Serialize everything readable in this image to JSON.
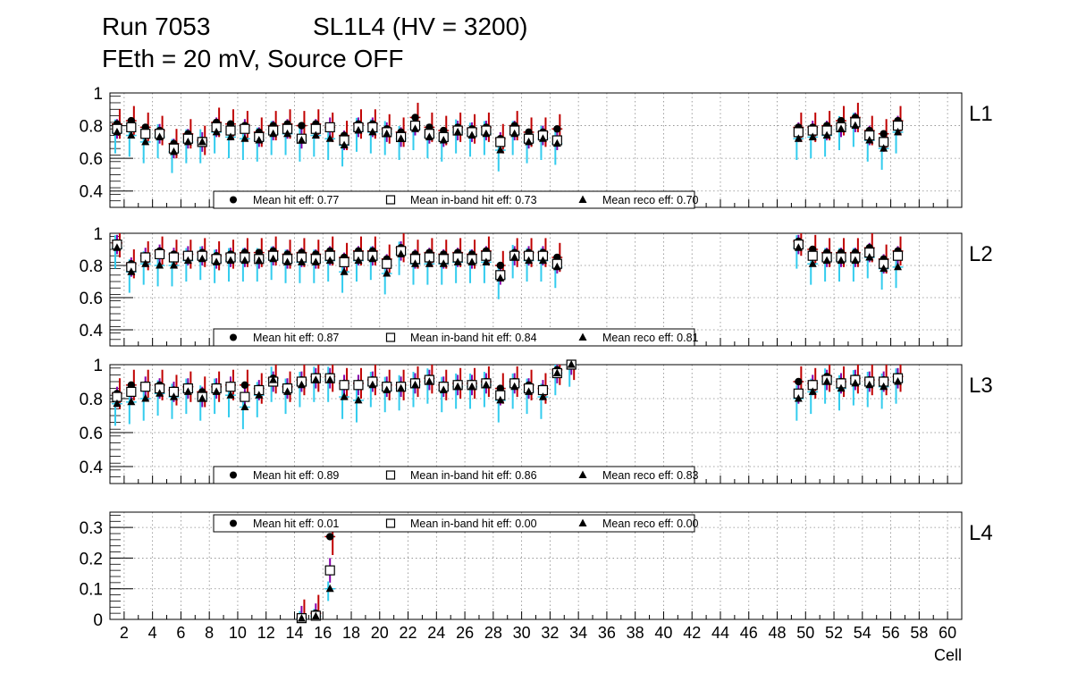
{
  "header": {
    "run": "Run 7053",
    "sl": "SL1L4 (HV = 3200)",
    "subtitle": "FEth = 20 mV, Source OFF"
  },
  "chart_data": [
    {
      "type": "scatter",
      "panel": "L1",
      "xlabel": "Cell",
      "xlim": [
        1,
        61
      ],
      "ylim": [
        0.3,
        1.0
      ],
      "yticks": [
        "0.4",
        "0.6",
        "0.8",
        "1"
      ],
      "legend": [
        {
          "marker": "filled-circle",
          "label": "Mean hit  eff: 0.77"
        },
        {
          "marker": "open-square",
          "label": "Mean in-band hit eff: 0.73"
        },
        {
          "marker": "filled-triangle",
          "label": "Mean reco eff: 0.70"
        }
      ],
      "legend_position": "bottom-center",
      "series": [
        {
          "name": "hit eff",
          "x": [
            1,
            2,
            3,
            4,
            5,
            6,
            7,
            8,
            9,
            10,
            11,
            12,
            13,
            14,
            15,
            16,
            17,
            18,
            19,
            20,
            21,
            22,
            23,
            24,
            25,
            26,
            27,
            28,
            29,
            30,
            31,
            32,
            49,
            50,
            51,
            52,
            53,
            54,
            55,
            56
          ],
          "values": [
            0.81,
            0.83,
            0.79,
            0.77,
            0.69,
            0.75,
            0.71,
            0.82,
            0.81,
            0.8,
            0.76,
            0.8,
            0.81,
            0.8,
            0.81,
            0.79,
            0.74,
            0.81,
            0.81,
            0.78,
            0.76,
            0.85,
            0.79,
            0.77,
            0.79,
            0.78,
            0.79,
            0.72,
            0.8,
            0.76,
            0.76,
            0.78,
            0.79,
            0.79,
            0.8,
            0.83,
            0.85,
            0.77,
            0.75,
            0.83
          ]
        },
        {
          "name": "in-band hit eff",
          "x": [
            1,
            2,
            3,
            4,
            5,
            6,
            7,
            8,
            9,
            10,
            11,
            12,
            13,
            14,
            15,
            16,
            17,
            18,
            19,
            20,
            21,
            22,
            23,
            24,
            25,
            26,
            27,
            28,
            29,
            30,
            31,
            32,
            49,
            50,
            51,
            52,
            53,
            54,
            55,
            56
          ],
          "values": [
            0.78,
            0.79,
            0.75,
            0.75,
            0.66,
            0.72,
            0.7,
            0.79,
            0.77,
            0.78,
            0.73,
            0.77,
            0.78,
            0.72,
            0.78,
            0.79,
            0.71,
            0.79,
            0.79,
            0.76,
            0.73,
            0.8,
            0.75,
            0.73,
            0.77,
            0.76,
            0.77,
            0.7,
            0.77,
            0.72,
            0.74,
            0.71,
            0.76,
            0.77,
            0.77,
            0.79,
            0.82,
            0.74,
            0.7,
            0.8
          ]
        },
        {
          "name": "reco eff",
          "x": [
            1,
            2,
            3,
            4,
            5,
            6,
            7,
            8,
            9,
            10,
            11,
            12,
            13,
            14,
            15,
            16,
            17,
            18,
            19,
            20,
            21,
            22,
            23,
            24,
            25,
            26,
            27,
            28,
            29,
            30,
            31,
            32,
            49,
            50,
            51,
            52,
            53,
            54,
            55,
            56
          ],
          "values": [
            0.76,
            0.74,
            0.7,
            0.73,
            0.64,
            0.7,
            0.7,
            0.76,
            0.73,
            0.72,
            0.71,
            0.75,
            0.75,
            0.71,
            0.74,
            0.72,
            0.68,
            0.77,
            0.76,
            0.75,
            0.72,
            0.78,
            0.73,
            0.71,
            0.76,
            0.74,
            0.75,
            0.65,
            0.75,
            0.7,
            0.72,
            0.69,
            0.72,
            0.73,
            0.74,
            0.78,
            0.8,
            0.71,
            0.66,
            0.76
          ]
        }
      ]
    },
    {
      "type": "scatter",
      "panel": "L2",
      "xlabel": "Cell",
      "xlim": [
        1,
        61
      ],
      "ylim": [
        0.3,
        1.0
      ],
      "yticks": [
        "0.4",
        "0.6",
        "0.8",
        "1"
      ],
      "legend": [
        {
          "marker": "filled-circle",
          "label": "Mean hit  eff: 0.87"
        },
        {
          "marker": "open-square",
          "label": "Mean in-band hit eff: 0.84"
        },
        {
          "marker": "filled-triangle",
          "label": "Mean reco eff: 0.81"
        }
      ],
      "legend_position": "bottom-center",
      "series": [
        {
          "name": "hit eff",
          "x": [
            1,
            2,
            3,
            4,
            5,
            6,
            7,
            8,
            9,
            10,
            11,
            12,
            13,
            14,
            15,
            16,
            17,
            18,
            19,
            20,
            21,
            22,
            23,
            24,
            25,
            26,
            27,
            28,
            29,
            30,
            31,
            32,
            49,
            50,
            51,
            52,
            53,
            54,
            55,
            56
          ],
          "values": [
            0.94,
            0.81,
            0.86,
            0.89,
            0.87,
            0.87,
            0.88,
            0.86,
            0.87,
            0.88,
            0.88,
            0.89,
            0.87,
            0.88,
            0.87,
            0.89,
            0.85,
            0.89,
            0.89,
            0.84,
            0.91,
            0.87,
            0.88,
            0.87,
            0.88,
            0.87,
            0.89,
            0.8,
            0.88,
            0.88,
            0.88,
            0.85,
            0.95,
            0.9,
            0.88,
            0.88,
            0.88,
            0.91,
            0.84,
            0.89
          ]
        },
        {
          "name": "in-band hit eff",
          "x": [
            1,
            2,
            3,
            4,
            5,
            6,
            7,
            8,
            9,
            10,
            11,
            12,
            13,
            14,
            15,
            16,
            17,
            18,
            19,
            20,
            21,
            22,
            23,
            24,
            25,
            26,
            27,
            28,
            29,
            30,
            31,
            32,
            49,
            50,
            51,
            52,
            53,
            54,
            55,
            56
          ],
          "values": [
            0.93,
            0.79,
            0.85,
            0.87,
            0.85,
            0.86,
            0.86,
            0.84,
            0.85,
            0.85,
            0.84,
            0.86,
            0.84,
            0.85,
            0.84,
            0.86,
            0.82,
            0.86,
            0.86,
            0.81,
            0.89,
            0.84,
            0.85,
            0.84,
            0.85,
            0.84,
            0.86,
            0.74,
            0.86,
            0.86,
            0.86,
            0.81,
            0.93,
            0.86,
            0.85,
            0.85,
            0.85,
            0.88,
            0.81,
            0.86
          ]
        },
        {
          "name": "reco eff",
          "x": [
            1,
            2,
            3,
            4,
            5,
            6,
            7,
            8,
            9,
            10,
            11,
            12,
            13,
            14,
            15,
            16,
            17,
            18,
            19,
            20,
            21,
            22,
            23,
            24,
            25,
            26,
            27,
            28,
            29,
            30,
            31,
            32,
            49,
            50,
            51,
            52,
            53,
            54,
            55,
            56
          ],
          "values": [
            0.91,
            0.76,
            0.81,
            0.8,
            0.8,
            0.83,
            0.84,
            0.82,
            0.83,
            0.83,
            0.83,
            0.84,
            0.82,
            0.82,
            0.82,
            0.83,
            0.76,
            0.83,
            0.84,
            0.75,
            0.87,
            0.81,
            0.81,
            0.81,
            0.82,
            0.82,
            0.82,
            0.72,
            0.85,
            0.83,
            0.83,
            0.79,
            0.91,
            0.81,
            0.83,
            0.83,
            0.83,
            0.85,
            0.78,
            0.79
          ]
        }
      ]
    },
    {
      "type": "scatter",
      "panel": "L3",
      "xlabel": "Cell",
      "xlim": [
        1,
        61
      ],
      "ylim": [
        0.3,
        1.0
      ],
      "yticks": [
        "0.4",
        "0.6",
        "0.8",
        "1"
      ],
      "legend": [
        {
          "marker": "filled-circle",
          "label": "Mean hit  eff: 0.89"
        },
        {
          "marker": "open-square",
          "label": "Mean in-band hit eff: 0.86"
        },
        {
          "marker": "filled-triangle",
          "label": "Mean reco eff: 0.83"
        }
      ],
      "legend_position": "bottom-center",
      "series": [
        {
          "name": "hit eff",
          "x": [
            1,
            2,
            3,
            4,
            5,
            6,
            7,
            8,
            9,
            10,
            11,
            12,
            13,
            14,
            15,
            16,
            17,
            18,
            19,
            20,
            21,
            22,
            23,
            24,
            25,
            26,
            27,
            28,
            29,
            30,
            31,
            32,
            33,
            49,
            50,
            51,
            52,
            53,
            54,
            55,
            56
          ],
          "values": [
            0.83,
            0.88,
            0.88,
            0.88,
            0.85,
            0.87,
            0.84,
            0.87,
            0.88,
            0.88,
            0.86,
            0.92,
            0.87,
            0.91,
            0.93,
            0.93,
            0.89,
            0.89,
            0.91,
            0.88,
            0.88,
            0.9,
            0.92,
            0.88,
            0.89,
            0.89,
            0.9,
            0.86,
            0.9,
            0.88,
            0.86,
            0.97,
            1.0,
            0.9,
            0.89,
            0.93,
            0.9,
            0.92,
            0.91,
            0.91,
            0.93
          ]
        },
        {
          "name": "in-band hit eff",
          "x": [
            1,
            2,
            3,
            4,
            5,
            6,
            7,
            8,
            9,
            10,
            11,
            12,
            13,
            14,
            15,
            16,
            17,
            18,
            19,
            20,
            21,
            22,
            23,
            24,
            25,
            26,
            27,
            28,
            29,
            30,
            31,
            32,
            33,
            49,
            50,
            51,
            52,
            53,
            54,
            55,
            56
          ],
          "values": [
            0.81,
            0.84,
            0.87,
            0.86,
            0.84,
            0.86,
            0.81,
            0.86,
            0.87,
            0.81,
            0.85,
            0.9,
            0.86,
            0.9,
            0.92,
            0.92,
            0.88,
            0.88,
            0.9,
            0.87,
            0.87,
            0.89,
            0.91,
            0.87,
            0.88,
            0.88,
            0.89,
            0.82,
            0.89,
            0.86,
            0.85,
            0.95,
            1.0,
            0.83,
            0.88,
            0.91,
            0.89,
            0.91,
            0.9,
            0.9,
            0.92
          ]
        },
        {
          "name": "reco eff",
          "x": [
            1,
            2,
            3,
            4,
            5,
            6,
            7,
            8,
            9,
            10,
            11,
            12,
            13,
            14,
            15,
            16,
            17,
            18,
            19,
            20,
            21,
            22,
            23,
            24,
            25,
            26,
            27,
            28,
            29,
            30,
            31,
            32,
            33,
            49,
            50,
            51,
            52,
            53,
            54,
            55,
            56
          ],
          "values": [
            0.77,
            0.78,
            0.8,
            0.83,
            0.81,
            0.84,
            0.8,
            0.84,
            0.82,
            0.75,
            0.82,
            0.91,
            0.84,
            0.88,
            0.91,
            0.91,
            0.81,
            0.79,
            0.88,
            0.85,
            0.86,
            0.88,
            0.9,
            0.85,
            0.87,
            0.87,
            0.88,
            0.79,
            0.87,
            0.84,
            0.81,
            0.95,
            1.0,
            0.8,
            0.84,
            0.9,
            0.86,
            0.89,
            0.88,
            0.87,
            0.9
          ]
        }
      ]
    },
    {
      "type": "scatter",
      "panel": "L4",
      "xlabel": "Cell",
      "xlim": [
        1,
        61
      ],
      "ylim": [
        0,
        0.35
      ],
      "yticks": [
        "0",
        "0.1",
        "0.2",
        "0.3"
      ],
      "xticks": [
        "2",
        "4",
        "6",
        "8",
        "10",
        "12",
        "14",
        "16",
        "18",
        "20",
        "22",
        "24",
        "26",
        "28",
        "30",
        "32",
        "34",
        "36",
        "38",
        "40",
        "42",
        "44",
        "46",
        "48",
        "50",
        "52",
        "54",
        "56",
        "58",
        "60"
      ],
      "legend": [
        {
          "marker": "filled-circle",
          "label": "Mean hit  eff: 0.01"
        },
        {
          "marker": "open-square",
          "label": "Mean in-band hit eff: 0.00"
        },
        {
          "marker": "filled-triangle",
          "label": "Mean reco eff: 0.00"
        }
      ],
      "legend_position": "top-center",
      "series": [
        {
          "name": "hit eff",
          "x": [
            14,
            15,
            16
          ],
          "values": [
            0.005,
            0.02,
            0.27
          ]
        },
        {
          "name": "in-band hit eff",
          "x": [
            14,
            15,
            16
          ],
          "values": [
            0.004,
            0.012,
            0.16
          ]
        },
        {
          "name": "reco eff",
          "x": [
            14,
            15,
            16
          ],
          "values": [
            0.003,
            0.01,
            0.1
          ]
        }
      ]
    }
  ],
  "colors": {
    "error_red": "#c00000",
    "error_blue": "#33ccee",
    "error_purple": "#8800aa",
    "grid": "#888888"
  }
}
